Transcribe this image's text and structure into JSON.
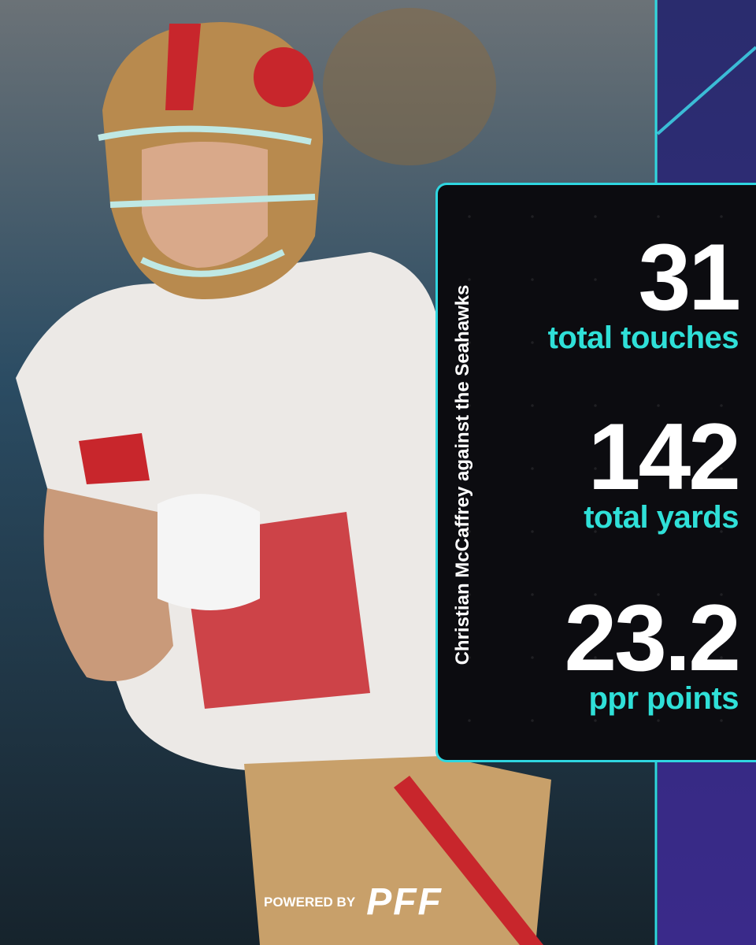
{
  "caption": "Christian McCaffrey against the Seahawks",
  "stats": [
    {
      "value": 31,
      "label": "total touches"
    },
    {
      "value": 142,
      "label": "total yards"
    },
    {
      "value": 23.2,
      "label": "ppr points"
    }
  ],
  "footer": {
    "prefix": "POWERED BY",
    "brand": "PFF"
  }
}
